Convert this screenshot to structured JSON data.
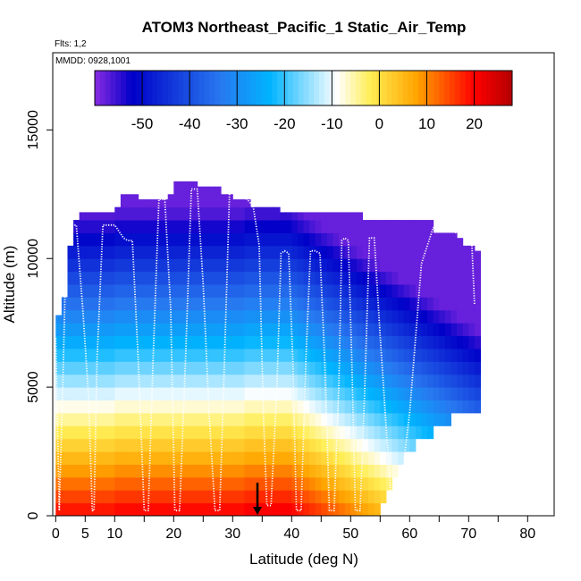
{
  "chart_data": {
    "type": "heatmap",
    "title": "ATOM3 Northeast_Pacific_1 Static_Air_Temp",
    "notes": [
      "Flts: 1,2",
      "MMDD: 0928,1001"
    ],
    "xlabel": "Latitude (deg N)",
    "ylabel": "Altitude (m)",
    "xlim": [
      -0.5,
      84.5
    ],
    "ylim": [
      0,
      18000
    ],
    "x_ticks": [
      0,
      5,
      10,
      20,
      30,
      40,
      50,
      60,
      70,
      80
    ],
    "x_minor_ticks": [
      15,
      25,
      35,
      45,
      55,
      65,
      75
    ],
    "y_ticks": [
      0,
      5000,
      10000,
      15000
    ],
    "colorbar": {
      "min": -60,
      "max": 28,
      "ticks": [
        -50,
        -40,
        -30,
        -20,
        -10,
        0,
        10,
        20
      ],
      "colors": [
        "#8a2be2",
        "#0000c8",
        "#2878f0",
        "#00b4ff",
        "#ffffff",
        "#ffee55",
        "#ffa500",
        "#ff0000",
        "#b40000"
      ]
    },
    "profile": {
      "lat_edges": [
        0,
        1,
        2,
        3,
        4,
        5,
        6,
        7,
        8,
        9,
        10,
        11,
        12,
        13,
        14,
        15,
        16,
        17,
        18,
        19,
        20,
        21,
        22,
        23,
        24,
        25,
        26,
        27,
        28,
        29,
        30,
        31,
        32,
        33,
        34,
        35,
        36,
        37,
        38,
        39,
        40,
        41,
        42,
        43,
        44,
        45,
        46,
        47,
        48,
        49,
        50,
        51,
        52,
        53,
        54,
        55,
        56,
        57,
        58,
        59,
        60,
        61,
        62,
        63,
        64,
        65,
        66,
        67,
        68,
        69,
        70,
        71,
        72
      ],
      "top_altitude_m": [
        7800,
        8500,
        10500,
        11500,
        11800,
        11800,
        11800,
        11800,
        11800,
        11800,
        12000,
        12500,
        12500,
        12500,
        12300,
        12300,
        12300,
        12300,
        12300,
        12500,
        13000,
        13000,
        13000,
        13000,
        12800,
        12800,
        12800,
        12800,
        12500,
        12500,
        12300,
        12300,
        12300,
        12000,
        12000,
        12000,
        12000,
        12000,
        11800,
        11800,
        11800,
        11800,
        11800,
        11800,
        11800,
        11800,
        11800,
        11800,
        11800,
        11800,
        11800,
        11800,
        11500,
        11500,
        11500,
        11500,
        11500,
        11500,
        11500,
        11500,
        11500,
        11500,
        11500,
        11500,
        11000,
        11000,
        11000,
        11000,
        10800,
        10500,
        10500,
        10300
      ],
      "bottom_altitude_m": [
        0,
        0,
        0,
        0,
        0,
        0,
        0,
        0,
        0,
        0,
        0,
        0,
        0,
        0,
        0,
        0,
        0,
        0,
        0,
        0,
        0,
        0,
        0,
        0,
        0,
        0,
        0,
        0,
        0,
        0,
        0,
        0,
        0,
        0,
        0,
        0,
        0,
        0,
        0,
        0,
        0,
        0,
        0,
        0,
        0,
        0,
        0,
        0,
        0,
        0,
        0,
        0,
        0,
        0,
        0,
        500,
        1000,
        1500,
        2000,
        2500,
        2500,
        3000,
        3000,
        3000,
        3500,
        3500,
        3500,
        4000,
        4000,
        4000,
        4000,
        4000
      ],
      "surface_temp_c": [
        20,
        20,
        20,
        20,
        20,
        20,
        20,
        20,
        20,
        20,
        21,
        21,
        21,
        21,
        21,
        21,
        21,
        21,
        21,
        21,
        21,
        21,
        21,
        21,
        21,
        21,
        21,
        21,
        21,
        21,
        21,
        21,
        22,
        22,
        22,
        22,
        22,
        22,
        22,
        22,
        21,
        20,
        19,
        18,
        17,
        16,
        15,
        14,
        13,
        12,
        11,
        10,
        9,
        8,
        7,
        6,
        5,
        4,
        3,
        2,
        1,
        0,
        -1,
        -2,
        -3,
        -4,
        -5,
        -6,
        -7,
        -8,
        -9,
        -10
      ],
      "lapse_c_per_km": 6.6,
      "min_temp_c": -58,
      "row_step_m": 500
    },
    "flight_track": {
      "lat": [
        0,
        0.6,
        1.2,
        1.8,
        2.4,
        3.5,
        4.6,
        5.6,
        6.2,
        6.5,
        7.0,
        8.0,
        9.0,
        10.0,
        10.9,
        11.5,
        12.2,
        13.0,
        14.0,
        15.0,
        15.7,
        16.5,
        17.5,
        18.5,
        19.5,
        20.2,
        21.0,
        22.0,
        23.0,
        24.0,
        25.0,
        26.0,
        27.0,
        27.8,
        28.6,
        29.5,
        30.5,
        31.5,
        32.5,
        33.5,
        34.5,
        35.2,
        35.8,
        36.5,
        37.5,
        38.2,
        38.8,
        39.5,
        40.2,
        40.8,
        41.6,
        42.4,
        43.2,
        44.0,
        44.8,
        45.6,
        46.4,
        47.2,
        48.0,
        48.5,
        49.0,
        49.6,
        50.2,
        50.8,
        51.6,
        52.4,
        53.2,
        54.0,
        55.0,
        56.0,
        57.0,
        58.0,
        60.0,
        62.0,
        64.0,
        66.0,
        68.0,
        70.0,
        70.5,
        71.0
      ],
      "altitude_m": [
        6900,
        200,
        5000,
        10700,
        11300,
        11300,
        8000,
        4500,
        200,
        200,
        6000,
        11300,
        11300,
        11300,
        11000,
        10800,
        10700,
        10700,
        6000,
        200,
        200,
        6000,
        12300,
        12300,
        8000,
        200,
        200,
        6000,
        12700,
        12700,
        9000,
        4000,
        200,
        200,
        6000,
        12800,
        12700,
        12400,
        12300,
        12000,
        10500,
        4000,
        400,
        400,
        5000,
        10200,
        10300,
        10200,
        6000,
        200,
        200,
        6000,
        10300,
        10300,
        10200,
        6000,
        200,
        200,
        5000,
        10700,
        10800,
        10700,
        6000,
        200,
        200,
        5000,
        10800,
        10800,
        7000,
        3500,
        200,
        200,
        4000,
        9800,
        11200,
        11100,
        11000,
        10900,
        10800,
        8200
      ]
    },
    "marker": {
      "lat": 34.2,
      "altitude_m": 800
    }
  }
}
